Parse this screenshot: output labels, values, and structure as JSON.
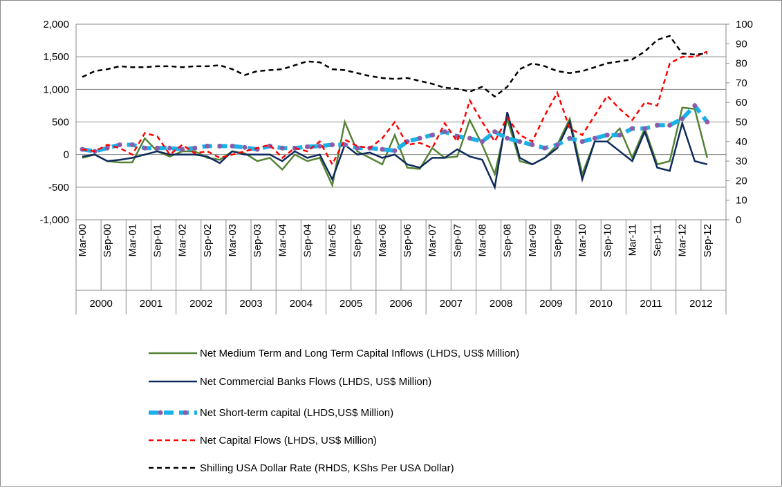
{
  "chart_data": {
    "type": "line",
    "categories": [
      "Mar-00",
      null,
      "Sep-00",
      null,
      "Mar-01",
      null,
      "Sep-01",
      null,
      "Mar-02",
      null,
      "Sep-02",
      null,
      "Mar-03",
      null,
      "Sep-03",
      null,
      "Mar-04",
      null,
      "Sep-04",
      null,
      "Mar-05",
      null,
      "Sep-05",
      null,
      "Mar-06",
      null,
      "Sep-06",
      null,
      "Mar-07",
      null,
      "Sep-07",
      null,
      "Mar-08",
      null,
      "Sep-08",
      null,
      "Mar-09",
      null,
      "Sep-09",
      null,
      "Mar-10",
      null,
      "Sep-10",
      null,
      "Mar-11",
      null,
      "Sep-11",
      null,
      "Mar-12",
      null,
      "Sep-12",
      null
    ],
    "groups": [
      "2000",
      "2001",
      "2002",
      "2003",
      "2004",
      "2005",
      "2006",
      "2007",
      "2008",
      "2009",
      "2010",
      "2011",
      "2012"
    ],
    "ylim": [
      -1000,
      2000
    ],
    "yticks": [
      {
        "value": -1000,
        "label": "-1,000"
      },
      -500,
      0,
      500,
      {
        "value": 1000,
        "label": "1,000"
      },
      {
        "value": 1500,
        "label": "1,500"
      },
      {
        "value": 2000,
        "label": "2,000"
      }
    ],
    "y2lim": [
      0,
      100
    ],
    "y2ticks": [
      0,
      10,
      20,
      30,
      40,
      50,
      60,
      70,
      80,
      90,
      100
    ],
    "grid": true,
    "series": [
      {
        "name": "Net Medium Term and Long Term Capital Inflows (LHDS, US$ Million)",
        "color": "#548235",
        "style": "solid",
        "values": [
          -50,
          0,
          -100,
          -120,
          -120,
          250,
          50,
          -30,
          50,
          50,
          -50,
          -80,
          50,
          20,
          -100,
          -50,
          -230,
          0,
          -100,
          -50,
          -470,
          500,
          50,
          -50,
          -150,
          300,
          -200,
          -220,
          100,
          -50,
          -30,
          530,
          150,
          -300,
          550,
          -100,
          -150,
          -50,
          150,
          550,
          -300,
          200,
          200,
          400,
          -50,
          400,
          -150,
          -100,
          720,
          700,
          -50,
          null
        ]
      },
      {
        "name": "Net Commercial Banks Flows (LHDS, US$ Million)",
        "color": "#0e2a5c",
        "style": "solid",
        "values": [
          -30,
          0,
          -100,
          -80,
          -50,
          0,
          50,
          0,
          0,
          0,
          -30,
          -130,
          50,
          0,
          0,
          0,
          -100,
          50,
          -50,
          0,
          -380,
          150,
          0,
          30,
          -50,
          0,
          -150,
          -200,
          -50,
          -50,
          80,
          -30,
          -80,
          -500,
          650,
          -50,
          -150,
          -50,
          100,
          500,
          -380,
          200,
          200,
          50,
          -100,
          350,
          -200,
          -250,
          480,
          -100,
          -150,
          null
        ]
      },
      {
        "name": "Net Short-term capital (LHDS,US$ Million)",
        "color": "#1ab0e8",
        "style": "dashed-thick",
        "marker_color": "#8e5ba8",
        "values": [
          80,
          50,
          100,
          150,
          150,
          100,
          100,
          100,
          80,
          100,
          130,
          130,
          130,
          110,
          80,
          130,
          100,
          100,
          120,
          130,
          150,
          150,
          100,
          100,
          80,
          60,
          200,
          250,
          300,
          350,
          280,
          250,
          200,
          350,
          250,
          200,
          150,
          100,
          150,
          250,
          200,
          250,
          300,
          300,
          400,
          400,
          450,
          450,
          550,
          750,
          500,
          null
        ]
      },
      {
        "name": "Net Capital Flows (LHDS, US$ Million)",
        "color": "#ff0000",
        "style": "dashed",
        "values": [
          80,
          50,
          150,
          100,
          0,
          330,
          280,
          0,
          150,
          20,
          50,
          -50,
          0,
          50,
          100,
          150,
          -50,
          100,
          50,
          200,
          -150,
          230,
          130,
          100,
          250,
          500,
          150,
          180,
          100,
          480,
          200,
          830,
          500,
          200,
          570,
          300,
          200,
          600,
          950,
          400,
          300,
          600,
          900,
          700,
          530,
          800,
          750,
          1400,
          1500,
          1500,
          1580,
          null
        ]
      },
      {
        "name": "Shilling USA Dollar Rate (RHDS, KShs Per USA Dollar)",
        "color": "#000000",
        "style": "dashed",
        "axis": "y2",
        "values": [
          73,
          76,
          77,
          78.5,
          78,
          78,
          78.5,
          78.5,
          78,
          78.5,
          78.5,
          79,
          77,
          74,
          76,
          76.5,
          77,
          79,
          81,
          80.5,
          77,
          76.5,
          75,
          73.5,
          72.5,
          72,
          72.5,
          71,
          69.5,
          67.5,
          67,
          65.5,
          68,
          63,
          68,
          77,
          80,
          78.5,
          76,
          75,
          76,
          78,
          80,
          81,
          82,
          86,
          92,
          94,
          85,
          84.5,
          85,
          null
        ]
      }
    ]
  }
}
